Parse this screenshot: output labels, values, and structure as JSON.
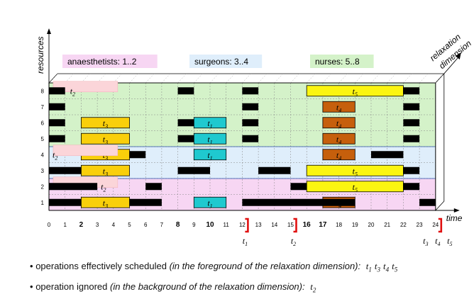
{
  "axes": {
    "y_label": "resources",
    "x_label": "time",
    "z_label_line1": "relaxation",
    "z_label_line2": "dimension"
  },
  "groups": [
    {
      "label": "anaesthetists: 1..2",
      "color": "#f7d6f3"
    },
    {
      "label": "surgeons: 3..4",
      "color": "#dfeefb"
    },
    {
      "label": "nurses: 5..8",
      "color": "#d4f2c9"
    }
  ],
  "resources": [
    "1",
    "2",
    "3",
    "4",
    "5",
    "6",
    "7",
    "8"
  ],
  "time_ticks": [
    "0",
    "1",
    "2",
    "3",
    "4",
    "5",
    "6",
    "7",
    "8",
    "9",
    "10",
    "11",
    "12",
    "13",
    "14",
    "15",
    "16",
    "17",
    "18",
    "19",
    "20",
    "21",
    "22",
    "23",
    "24"
  ],
  "bold_ticks": [
    "2",
    "8",
    "10",
    "16",
    "17"
  ],
  "colors": {
    "t1": "#1fc9cf",
    "t2": "#fbd5d9",
    "t3": "#f9cf0b",
    "t4": "#c65f0c",
    "t5": "#fbf511",
    "busy": "#000000"
  },
  "tasks": [
    {
      "name": "t",
      "sub": "1",
      "resources": [
        "1",
        "4",
        "5",
        "6"
      ],
      "start": 9,
      "end": 11,
      "color": "t1"
    },
    {
      "name": "t",
      "sub": "3",
      "resources": [
        "1",
        "3",
        "4",
        "5",
        "6"
      ],
      "start": 2,
      "end": 5,
      "color": "t3"
    },
    {
      "name": "t",
      "sub": "4",
      "resources": [
        "1",
        "4",
        "5",
        "6",
        "7"
      ],
      "start": 17,
      "end": 19,
      "color": "t4"
    },
    {
      "name": "t",
      "sub": "5",
      "resources": [
        "2",
        "3",
        "8"
      ],
      "start": 16,
      "end": 22,
      "color": "t5"
    },
    {
      "name": "t",
      "sub": "2",
      "resources": [
        "2",
        "4",
        "8"
      ],
      "start": 0,
      "end": 4,
      "color": "t2",
      "background": true
    }
  ],
  "busy_blocks": [
    {
      "resource": "1",
      "start": 0,
      "end": 2
    },
    {
      "resource": "1",
      "start": 5,
      "end": 7
    },
    {
      "resource": "1",
      "start": 12,
      "end": 19
    },
    {
      "resource": "1",
      "start": 23,
      "end": 24
    },
    {
      "resource": "2",
      "start": 0,
      "end": 3
    },
    {
      "resource": "2",
      "start": 6,
      "end": 7
    },
    {
      "resource": "2",
      "start": 15,
      "end": 16
    },
    {
      "resource": "2",
      "start": 22,
      "end": 23
    },
    {
      "resource": "3",
      "start": 0,
      "end": 2
    },
    {
      "resource": "3",
      "start": 8,
      "end": 10
    },
    {
      "resource": "3",
      "start": 13,
      "end": 15
    },
    {
      "resource": "3",
      "start": 22,
      "end": 23
    },
    {
      "resource": "4",
      "start": 5,
      "end": 6
    },
    {
      "resource": "4",
      "start": 20,
      "end": 22
    },
    {
      "resource": "5",
      "start": 0,
      "end": 1
    },
    {
      "resource": "5",
      "start": 8,
      "end": 9
    },
    {
      "resource": "5",
      "start": 12,
      "end": 13
    },
    {
      "resource": "5",
      "start": 22,
      "end": 23
    },
    {
      "resource": "6",
      "start": 0,
      "end": 1
    },
    {
      "resource": "6",
      "start": 8,
      "end": 9
    },
    {
      "resource": "6",
      "start": 12,
      "end": 13
    },
    {
      "resource": "6",
      "start": 22,
      "end": 23
    },
    {
      "resource": "7",
      "start": 0,
      "end": 1
    },
    {
      "resource": "7",
      "start": 12,
      "end": 13
    },
    {
      "resource": "7",
      "start": 22,
      "end": 23
    },
    {
      "resource": "8",
      "start": 0,
      "end": 1
    },
    {
      "resource": "8",
      "start": 8,
      "end": 9
    },
    {
      "resource": "8",
      "start": 12,
      "end": 13
    },
    {
      "resource": "8",
      "start": 22,
      "end": 23
    }
  ],
  "release_markers": [
    {
      "time": 12,
      "label": "t",
      "subs": [
        "1"
      ]
    },
    {
      "time": 15,
      "label": "t",
      "subs": [
        "2"
      ]
    },
    {
      "time": 24,
      "label": "t",
      "subs": [
        "3",
        "4",
        "5"
      ]
    }
  ],
  "notes": {
    "line1_prefix": "operations effectively scheduled ",
    "line1_italic": "(in the foreground of the relaxation dimension):",
    "line1_tasks": [
      {
        "t": "t",
        "s": "1"
      },
      {
        "t": "t",
        "s": "3"
      },
      {
        "t": "t",
        "s": "4"
      },
      {
        "t": "t",
        "s": "5"
      }
    ],
    "line2_prefix": "operation ignored ",
    "line2_italic": "(in the background of the relaxation dimension):",
    "line2_tasks": [
      {
        "t": "t",
        "s": "2"
      }
    ]
  }
}
